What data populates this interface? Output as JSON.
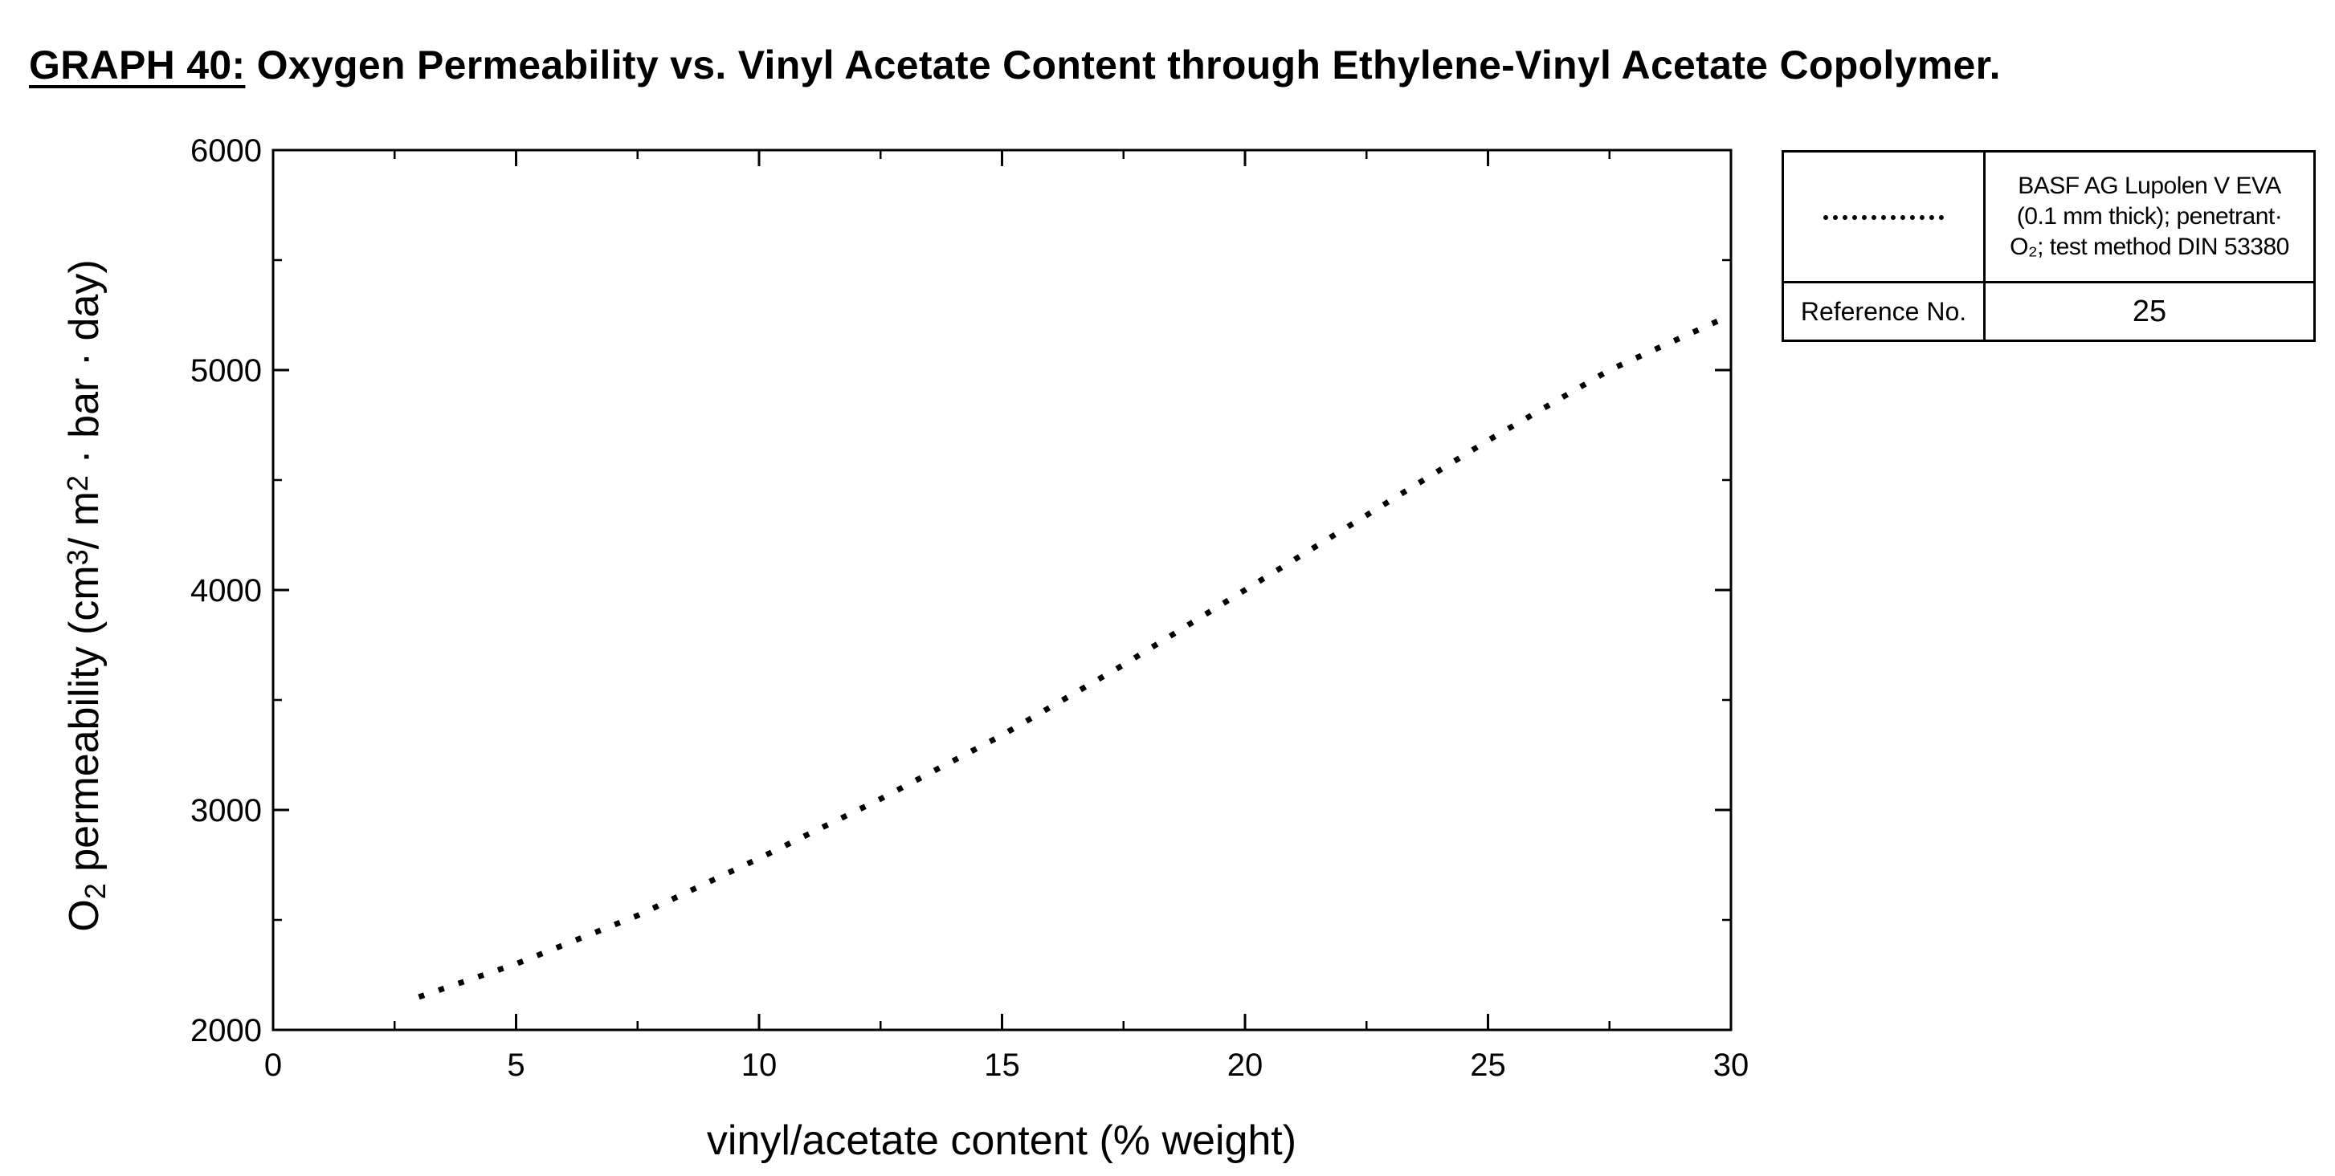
{
  "chart_data": {
    "type": "line",
    "title_prefix": "GRAPH 40:",
    "title": "Oxygen Permeability vs. Vinyl Acetate Content through Ethylene-Vinyl Acetate Copolymer.",
    "xlabel": "vinyl/acetate content (% weight)",
    "ylabel": "O2 permeability (cm3/ m2 · bar · day)",
    "xlim": [
      0,
      30
    ],
    "ylim": [
      2000,
      6000
    ],
    "x_ticks": [
      "0",
      "5",
      "10",
      "15",
      "20",
      "25",
      "30"
    ],
    "y_ticks": [
      "2000",
      "3000",
      "4000",
      "5000",
      "6000"
    ],
    "grid": false,
    "series": [
      {
        "line_style": "dotted",
        "x": [
          3,
          5,
          7.5,
          10,
          12.5,
          15,
          17.5,
          20,
          22.5,
          25,
          27.5,
          29.8
        ],
        "y": [
          2150,
          2300,
          2520,
          2780,
          3050,
          3340,
          3660,
          4000,
          4340,
          4680,
          5000,
          5230
        ]
      }
    ],
    "legend": {
      "description_lines": [
        "BASF AG Lupolen V EVA",
        "(0.1 mm thick); penetrant·",
        "O₂; test method  DIN 53380"
      ],
      "reference_label": "Reference No.",
      "reference_value": "25"
    }
  }
}
